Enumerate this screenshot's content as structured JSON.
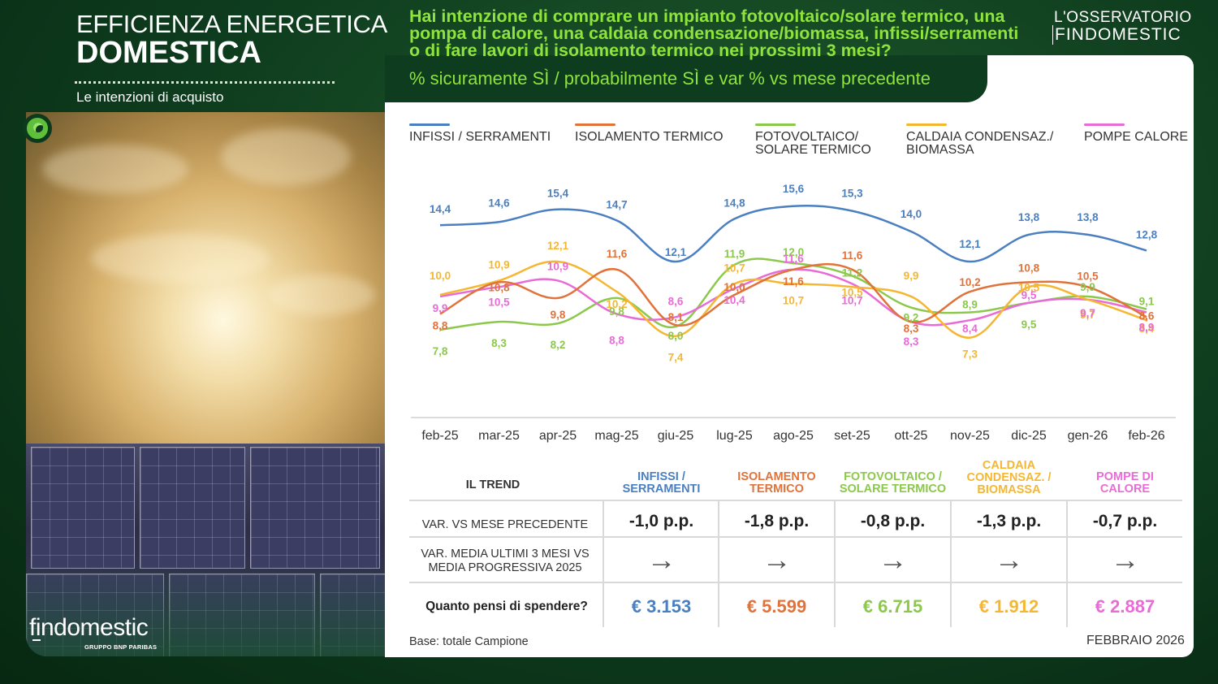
{
  "header": {
    "title_line1": "EFFICIENZA ENERGETICA",
    "title_line2": "DOMESTICA",
    "subtitle": "Le intenzioni di acquisto",
    "question": "Hai intenzione di comprare un impianto fotovoltaico/solare termico, una pompa di calore, una caldaia condensazione/biomassa, infissi/serramenti o di fare lavori di isolamento termico nei prossimi 3 mesi?",
    "measure": "% sicuramente SÌ / probabilmente SÌ e var % vs mese precedente",
    "brand_top": "L'OSSERVATORIO",
    "brand_bottom": "FINDOMESTIC"
  },
  "colors": {
    "infissi": "#4a7fc1",
    "isolamento": "#e0723a",
    "fotovoltaico": "#8cc84b",
    "caldaia": "#f5b731",
    "pompe": "#e86bd6"
  },
  "chart_data": {
    "type": "line",
    "categories": [
      "feb-25",
      "mar-25",
      "apr-25",
      "mag-25",
      "giu-25",
      "lug-25",
      "ago-25",
      "set-25",
      "ott-25",
      "nov-25",
      "dic-25",
      "gen-26",
      "feb-26"
    ],
    "series": [
      {
        "key": "infissi",
        "name": "INFISSI / SERRAMENTI",
        "values": [
          14.4,
          14.6,
          15.4,
          14.7,
          12.1,
          14.8,
          15.6,
          15.3,
          14.0,
          12.1,
          13.8,
          13.8,
          12.8
        ]
      },
      {
        "key": "isolamento",
        "name": "ISOLAMENTO TERMICO",
        "values": [
          8.8,
          10.8,
          9.8,
          11.6,
          8.1,
          10.0,
          11.6,
          11.6,
          8.3,
          10.2,
          10.8,
          10.5,
          8.6
        ]
      },
      {
        "key": "fotovoltaico",
        "name": "FOTOVOLTAICO/\nSOLARE TERMICO",
        "values": [
          7.8,
          8.3,
          8.2,
          9.8,
          8.0,
          11.9,
          12.0,
          11.2,
          9.2,
          8.9,
          9.5,
          9.9,
          9.1
        ]
      },
      {
        "key": "caldaia",
        "name": "CALDAIA CONDENSAZ./\nBIOMASSA",
        "values": [
          10.0,
          10.9,
          12.1,
          10.2,
          7.4,
          10.7,
          10.7,
          10.5,
          9.9,
          7.3,
          10.5,
          9.7,
          8.4
        ]
      },
      {
        "key": "pompe",
        "name": "POMPE CALORE",
        "values": [
          9.9,
          10.5,
          10.9,
          8.8,
          8.6,
          10.4,
          11.6,
          10.7,
          8.3,
          8.4,
          9.5,
          9.7,
          8.9
        ]
      }
    ],
    "labels": {
      "infissi": [
        "14,4",
        "14,6",
        "15,4",
        "14,7",
        "12,1",
        "14,8",
        "15,6",
        "15,3",
        "14,0",
        "12,1",
        "13,8",
        "13,8",
        "12,8"
      ],
      "isolamento": [
        "8,8",
        "10,8",
        "9,8",
        "11,6",
        "8,1",
        "10,0",
        "11,6",
        "11,6",
        "8,3",
        "10,2",
        "10,8",
        "10,5",
        "8,6"
      ],
      "fotovoltaico": [
        "7,8",
        "8,3",
        "8,2",
        "9,8",
        "8,0",
        "11,9",
        "12,0",
        "11,2",
        "9,2",
        "8,9",
        "9,5",
        "9,9",
        "9,1"
      ],
      "caldaia": [
        "10,0",
        "10,9",
        "12,1",
        "10,2",
        "7,4",
        "10,7",
        "10,7",
        "10,5",
        "9,9",
        "7,3",
        "10,5",
        "9,7",
        "8,4"
      ],
      "pompe": [
        "9,9",
        "10,5",
        "10,9",
        "8,8",
        "8,6",
        "10,4",
        "11,6",
        "10,7",
        "8,3",
        "8,4",
        "9,5",
        "9,7",
        "8,9"
      ]
    }
  },
  "table": {
    "trend_title": "IL TREND",
    "row1_label": "VAR. VS MESE PRECEDENTE",
    "row2_label": "VAR.  MEDIA ULTIMI 3 MESI VS\nMEDIA PROGRESSIVA  2025",
    "row3_label": "Quanto pensi di spendere?",
    "columns": [
      {
        "key": "infissi",
        "head": "INFISSI /\nSERRAMENTI",
        "var": "-1,0 p.p.",
        "trend": "→",
        "spend": "€ 3.153"
      },
      {
        "key": "isolamento",
        "head": "ISOLAMENTO\nTERMICO",
        "var": "-1,8 p.p.",
        "trend": "→",
        "spend": "€ 5.599"
      },
      {
        "key": "fotovoltaico",
        "head": "FOTOVOLTAICO /\nSOLARE TERMICO",
        "var": "-0,8 p.p.",
        "trend": "→",
        "spend": "€ 6.715"
      },
      {
        "key": "caldaia",
        "head": "CALDAIA\nCONDENSAZ. /\nBIOMASSA",
        "var": "-1,3 p.p.",
        "trend": "→",
        "spend": "€ 1.912"
      },
      {
        "key": "pompe",
        "head": "POMPE DI\nCALORE",
        "var": "-0,7 p.p.",
        "trend": "→",
        "spend": "€ 2.887"
      }
    ]
  },
  "footer": {
    "base": "Base: totale Campione",
    "date": "FEBBRAIO 2026",
    "logo": "findomestic",
    "logo_sub": "GRUPPO BNP PARIBAS"
  }
}
